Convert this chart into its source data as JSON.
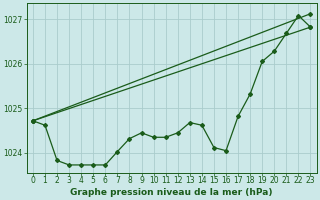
{
  "title": "Graphe pression niveau de la mer (hPa)",
  "bg_color": "#cce8e8",
  "grid_color": "#aacccc",
  "line_color": "#1a5c1a",
  "x_min": -0.5,
  "x_max": 23.5,
  "y_min": 1023.55,
  "y_max": 1027.35,
  "yticks": [
    1024,
    1025,
    1026,
    1027
  ],
  "xticks": [
    0,
    1,
    2,
    3,
    4,
    5,
    6,
    7,
    8,
    9,
    10,
    11,
    12,
    13,
    14,
    15,
    16,
    17,
    18,
    19,
    20,
    21,
    22,
    23
  ],
  "series1_x": [
    0,
    1,
    2,
    3,
    4,
    5,
    6,
    7,
    8,
    9,
    10,
    11,
    12,
    13,
    14,
    15,
    16,
    17,
    18,
    19,
    20,
    21,
    22,
    23
  ],
  "series1_y": [
    1024.72,
    1024.62,
    1023.83,
    1023.73,
    1023.73,
    1023.73,
    1023.73,
    1024.03,
    1024.32,
    1024.45,
    1024.35,
    1024.35,
    1024.45,
    1024.68,
    1024.62,
    1024.12,
    1024.05,
    1024.82,
    1025.32,
    1026.05,
    1026.28,
    1026.68,
    1027.08,
    1026.82
  ],
  "series2_x": [
    0,
    23
  ],
  "series2_y": [
    1024.72,
    1026.82
  ],
  "series3_x": [
    0,
    23
  ],
  "series3_y": [
    1024.72,
    1027.12
  ],
  "xlabel_fontsize": 6.5,
  "tick_fontsize": 5.5,
  "linewidth": 0.9,
  "markersize": 2.0
}
